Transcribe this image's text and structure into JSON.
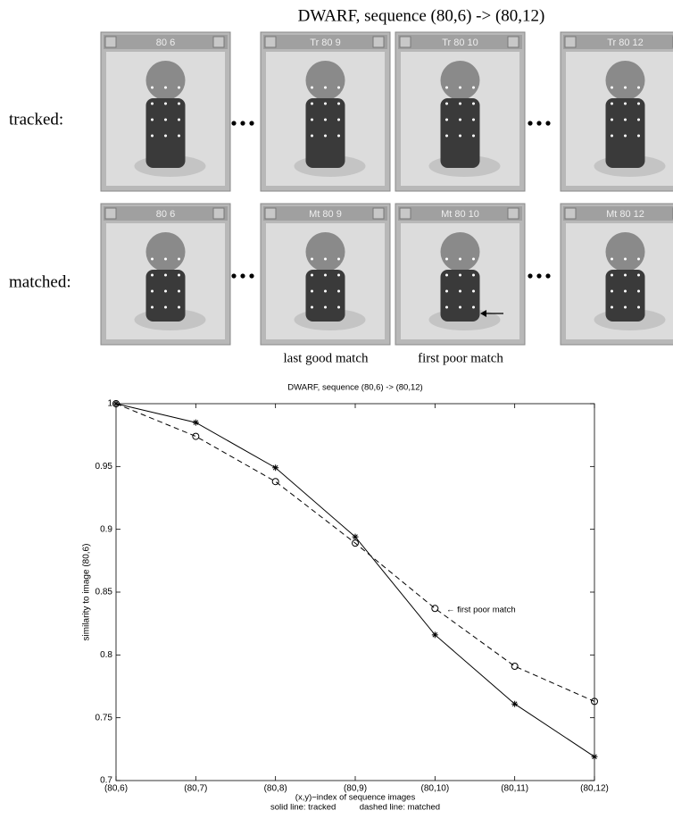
{
  "figure": {
    "title": "DWARF, sequence (80,6) -> (80,12)",
    "rows": [
      {
        "label": "tracked:",
        "windows": [
          "80 6",
          "Tr 80 9",
          "Tr 80 10",
          "Tr 80 12"
        ]
      },
      {
        "label": "matched:",
        "windows": [
          "80 6",
          "Mt 80 9",
          "Mt 80 10",
          "Mt 80 12"
        ]
      }
    ],
    "captions": [
      "last good match",
      "first poor match"
    ]
  },
  "chart_data": {
    "type": "line",
    "title": "DWARF,   sequence (80,6) -> (80,12)",
    "categories": [
      "(80,6)",
      "(80,7)",
      "(80,8)",
      "(80,9)",
      "(80,10)",
      "(80,11)",
      "(80,12)"
    ],
    "series": [
      {
        "color": "#000000",
        "dashed": false,
        "marker": "star",
        "values": [
          1,
          0.985,
          0.949,
          0.894,
          0.816,
          0.761,
          0.719
        ]
      },
      {
        "color": "#000000",
        "dashed": true,
        "marker": "circle",
        "values": [
          1,
          0.974,
          0.938,
          0.889,
          0.837,
          0.791,
          0.763
        ]
      }
    ],
    "ylim": [
      0.7,
      1
    ],
    "yticks": [
      0.7,
      0.75,
      0.8,
      0.85,
      0.9,
      0.95,
      1
    ],
    "ylabel": "similarity to image (80,6)",
    "xlabel": [
      "(x,y)−index of sequence images",
      "solid line: tracked          dashed line: matched"
    ],
    "annotation": "← first poor match"
  }
}
